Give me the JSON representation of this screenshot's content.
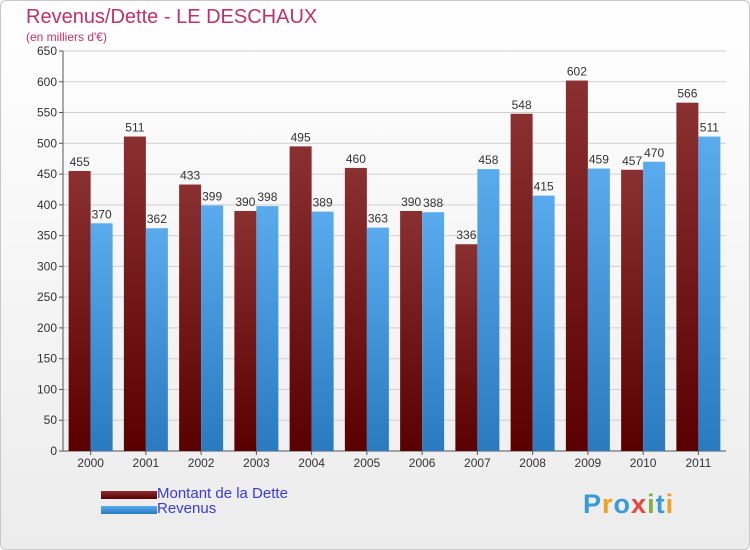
{
  "header": {
    "title": "Revenus/Dette - LE DESCHAUX",
    "subtitle": "(en milliers d'€)"
  },
  "logo": {
    "text": "Proxiti",
    "letters": [
      {
        "ch": "P",
        "color": "#3a9bd9"
      },
      {
        "ch": "r",
        "color": "#f0a020"
      },
      {
        "ch": "o",
        "color": "#3a9bd9"
      },
      {
        "ch": "x",
        "color": "#e8453c"
      },
      {
        "ch": "i",
        "color": "#7cb342"
      },
      {
        "ch": "t",
        "color": "#3a9bd9"
      },
      {
        "ch": "i",
        "color": "#f0a020"
      }
    ]
  },
  "colors": {
    "dette_top": "#8a3030",
    "dette_bottom": "#5a0000",
    "revenus_top": "#5aaaee",
    "revenus_bottom": "#2a7ac0",
    "grid": "#d0d0d0",
    "text": "#333333"
  },
  "chart_data": {
    "type": "bar",
    "categories": [
      "2000",
      "2001",
      "2002",
      "2003",
      "2004",
      "2005",
      "2006",
      "2007",
      "2008",
      "2009",
      "2010",
      "2011"
    ],
    "series": [
      {
        "name": "Montant de la Dette",
        "values": [
          455,
          511,
          433,
          390,
          495,
          460,
          390,
          336,
          548,
          602,
          457,
          566
        ]
      },
      {
        "name": "Revenus",
        "values": [
          370,
          362,
          399,
          398,
          389,
          363,
          388,
          458,
          415,
          459,
          470,
          511
        ]
      }
    ],
    "yticks": [
      0,
      50,
      100,
      150,
      200,
      250,
      300,
      350,
      400,
      450,
      500,
      550,
      600,
      650
    ],
    "ylim": [
      0,
      650
    ],
    "grid": true,
    "legend_position": "bottom-left"
  }
}
